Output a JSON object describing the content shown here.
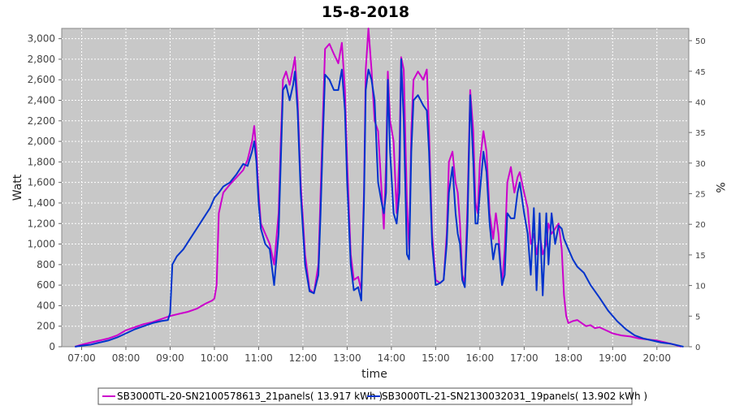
{
  "chart_data": {
    "type": "line",
    "title": "15-8-2018",
    "xlabel": "time",
    "ylabel": "Watt",
    "y2label": "%",
    "xlim": [
      6.55,
      20.72
    ],
    "ylim": [
      0,
      3100
    ],
    "y2lim": [
      0,
      52
    ],
    "x_ticks": [
      "07:00",
      "08:00",
      "09:00",
      "10:00",
      "11:00",
      "12:00",
      "13:00",
      "14:00",
      "15:00",
      "16:00",
      "17:00",
      "18:00",
      "19:00",
      "20:00"
    ],
    "y_ticks": [
      "0",
      "200",
      "400",
      "600",
      "800",
      "1,000",
      "1,200",
      "1,400",
      "1,600",
      "1,800",
      "2,000",
      "2,200",
      "2,400",
      "2,600",
      "2,800",
      "3,000"
    ],
    "y2_ticks": [
      "0",
      "5",
      "10",
      "15",
      "20",
      "25",
      "30",
      "35",
      "40",
      "45",
      "50"
    ],
    "grid": true,
    "legend_position": "bottom",
    "series": [
      {
        "name": "SB3000TL-20-SN2100578613_21panels( 13.917 kWh )",
        "color": "#cc00cc",
        "points": [
          [
            6.85,
            0
          ],
          [
            7.0,
            20
          ],
          [
            7.2,
            40
          ],
          [
            7.4,
            60
          ],
          [
            7.6,
            80
          ],
          [
            7.8,
            110
          ],
          [
            8.0,
            160
          ],
          [
            8.2,
            190
          ],
          [
            8.4,
            220
          ],
          [
            8.6,
            240
          ],
          [
            8.8,
            270
          ],
          [
            9.0,
            300
          ],
          [
            9.2,
            320
          ],
          [
            9.4,
            340
          ],
          [
            9.6,
            370
          ],
          [
            9.8,
            420
          ],
          [
            9.95,
            450
          ],
          [
            10.0,
            470
          ],
          [
            10.05,
            600
          ],
          [
            10.1,
            1300
          ],
          [
            10.2,
            1500
          ],
          [
            10.35,
            1580
          ],
          [
            10.5,
            1650
          ],
          [
            10.65,
            1720
          ],
          [
            10.75,
            1820
          ],
          [
            10.85,
            2000
          ],
          [
            10.9,
            2150
          ],
          [
            10.95,
            1900
          ],
          [
            11.0,
            1500
          ],
          [
            11.05,
            1200
          ],
          [
            11.15,
            1100
          ],
          [
            11.25,
            1000
          ],
          [
            11.35,
            800
          ],
          [
            11.45,
            1300
          ],
          [
            11.5,
            2000
          ],
          [
            11.55,
            2600
          ],
          [
            11.62,
            2680
          ],
          [
            11.7,
            2550
          ],
          [
            11.78,
            2720
          ],
          [
            11.82,
            2820
          ],
          [
            11.88,
            2400
          ],
          [
            11.95,
            1600
          ],
          [
            12.05,
            900
          ],
          [
            12.15,
            560
          ],
          [
            12.25,
            520
          ],
          [
            12.35,
            800
          ],
          [
            12.4,
            1500
          ],
          [
            12.45,
            2200
          ],
          [
            12.5,
            2900
          ],
          [
            12.6,
            2950
          ],
          [
            12.7,
            2850
          ],
          [
            12.8,
            2760
          ],
          [
            12.88,
            2960
          ],
          [
            12.95,
            2500
          ],
          [
            13.0,
            1800
          ],
          [
            13.08,
            900
          ],
          [
            13.15,
            650
          ],
          [
            13.25,
            680
          ],
          [
            13.32,
            550
          ],
          [
            13.38,
            1500
          ],
          [
            13.42,
            2700
          ],
          [
            13.48,
            3100
          ],
          [
            13.55,
            2700
          ],
          [
            13.62,
            2200
          ],
          [
            13.7,
            2100
          ],
          [
            13.78,
            1500
          ],
          [
            13.83,
            1150
          ],
          [
            13.88,
            1800
          ],
          [
            13.92,
            2680
          ],
          [
            13.97,
            2200
          ],
          [
            14.05,
            2000
          ],
          [
            14.12,
            1300
          ],
          [
            14.18,
            1850
          ],
          [
            14.22,
            2820
          ],
          [
            14.28,
            2700
          ],
          [
            14.35,
            1400
          ],
          [
            14.4,
            950
          ],
          [
            14.45,
            2100
          ],
          [
            14.5,
            2600
          ],
          [
            14.6,
            2680
          ],
          [
            14.72,
            2600
          ],
          [
            14.8,
            2700
          ],
          [
            14.85,
            2100
          ],
          [
            14.92,
            1100
          ],
          [
            15.0,
            650
          ],
          [
            15.1,
            620
          ],
          [
            15.18,
            650
          ],
          [
            15.25,
            1100
          ],
          [
            15.3,
            1800
          ],
          [
            15.38,
            1900
          ],
          [
            15.45,
            1600
          ],
          [
            15.5,
            1500
          ],
          [
            15.55,
            1200
          ],
          [
            15.6,
            700
          ],
          [
            15.66,
            620
          ],
          [
            15.72,
            1400
          ],
          [
            15.78,
            2500
          ],
          [
            15.85,
            2100
          ],
          [
            15.9,
            1400
          ],
          [
            15.95,
            1300
          ],
          [
            16.0,
            1800
          ],
          [
            16.08,
            2100
          ],
          [
            16.15,
            1900
          ],
          [
            16.22,
            1300
          ],
          [
            16.3,
            1050
          ],
          [
            16.36,
            1300
          ],
          [
            16.42,
            1100
          ],
          [
            16.5,
            600
          ],
          [
            16.56,
            950
          ],
          [
            16.62,
            1600
          ],
          [
            16.7,
            1750
          ],
          [
            16.78,
            1500
          ],
          [
            16.85,
            1650
          ],
          [
            16.9,
            1700
          ],
          [
            17.0,
            1500
          ],
          [
            17.08,
            1350
          ],
          [
            17.15,
            1000
          ],
          [
            17.22,
            1100
          ],
          [
            17.28,
            900
          ],
          [
            17.35,
            1100
          ],
          [
            17.42,
            900
          ],
          [
            17.5,
            1000
          ],
          [
            17.55,
            1200
          ],
          [
            17.62,
            1100
          ],
          [
            17.7,
            1150
          ],
          [
            17.78,
            1200
          ],
          [
            17.85,
            950
          ],
          [
            17.9,
            500
          ],
          [
            17.95,
            300
          ],
          [
            18.0,
            230
          ],
          [
            18.1,
            250
          ],
          [
            18.2,
            260
          ],
          [
            18.3,
            230
          ],
          [
            18.4,
            200
          ],
          [
            18.5,
            210
          ],
          [
            18.6,
            180
          ],
          [
            18.7,
            190
          ],
          [
            18.8,
            170
          ],
          [
            18.9,
            150
          ],
          [
            19.0,
            130
          ],
          [
            19.2,
            110
          ],
          [
            19.4,
            100
          ],
          [
            19.6,
            80
          ],
          [
            19.8,
            70
          ],
          [
            20.0,
            60
          ],
          [
            20.2,
            40
          ],
          [
            20.4,
            20
          ],
          [
            20.55,
            0
          ]
        ]
      },
      {
        "name": "SB3000TL-21-SN2130032031_19panels( 13.902 kWh )",
        "color": "#0033cc",
        "points": [
          [
            6.85,
            0
          ],
          [
            7.0,
            10
          ],
          [
            7.2,
            20
          ],
          [
            7.4,
            40
          ],
          [
            7.6,
            60
          ],
          [
            7.8,
            90
          ],
          [
            8.0,
            130
          ],
          [
            8.2,
            170
          ],
          [
            8.4,
            200
          ],
          [
            8.6,
            230
          ],
          [
            8.8,
            250
          ],
          [
            8.95,
            260
          ],
          [
            9.0,
            330
          ],
          [
            9.05,
            800
          ],
          [
            9.15,
            880
          ],
          [
            9.3,
            950
          ],
          [
            9.45,
            1050
          ],
          [
            9.6,
            1150
          ],
          [
            9.75,
            1250
          ],
          [
            9.9,
            1350
          ],
          [
            10.0,
            1450
          ],
          [
            10.1,
            1500
          ],
          [
            10.2,
            1560
          ],
          [
            10.35,
            1600
          ],
          [
            10.5,
            1680
          ],
          [
            10.65,
            1780
          ],
          [
            10.75,
            1760
          ],
          [
            10.85,
            1900
          ],
          [
            10.9,
            2000
          ],
          [
            10.95,
            1800
          ],
          [
            11.0,
            1400
          ],
          [
            11.05,
            1150
          ],
          [
            11.15,
            1000
          ],
          [
            11.25,
            950
          ],
          [
            11.35,
            600
          ],
          [
            11.45,
            1100
          ],
          [
            11.5,
            1800
          ],
          [
            11.55,
            2500
          ],
          [
            11.62,
            2550
          ],
          [
            11.7,
            2400
          ],
          [
            11.78,
            2550
          ],
          [
            11.82,
            2680
          ],
          [
            11.88,
            2300
          ],
          [
            11.95,
            1500
          ],
          [
            12.05,
            800
          ],
          [
            12.15,
            540
          ],
          [
            12.25,
            520
          ],
          [
            12.35,
            700
          ],
          [
            12.4,
            1300
          ],
          [
            12.45,
            2000
          ],
          [
            12.5,
            2650
          ],
          [
            12.6,
            2600
          ],
          [
            12.7,
            2500
          ],
          [
            12.8,
            2500
          ],
          [
            12.88,
            2700
          ],
          [
            12.95,
            2300
          ],
          [
            13.0,
            1600
          ],
          [
            13.08,
            800
          ],
          [
            13.15,
            550
          ],
          [
            13.25,
            580
          ],
          [
            13.32,
            450
          ],
          [
            13.38,
            1400
          ],
          [
            13.42,
            2500
          ],
          [
            13.48,
            2700
          ],
          [
            13.55,
            2600
          ],
          [
            13.62,
            2400
          ],
          [
            13.7,
            1600
          ],
          [
            13.78,
            1400
          ],
          [
            13.83,
            1300
          ],
          [
            13.88,
            1500
          ],
          [
            13.92,
            2600
          ],
          [
            13.97,
            1900
          ],
          [
            14.05,
            1300
          ],
          [
            14.12,
            1200
          ],
          [
            14.18,
            1500
          ],
          [
            14.22,
            2800
          ],
          [
            14.28,
            2200
          ],
          [
            14.35,
            900
          ],
          [
            14.4,
            850
          ],
          [
            14.45,
            1900
          ],
          [
            14.5,
            2400
          ],
          [
            14.6,
            2450
          ],
          [
            14.72,
            2350
          ],
          [
            14.8,
            2300
          ],
          [
            14.85,
            1900
          ],
          [
            14.92,
            1000
          ],
          [
            15.0,
            600
          ],
          [
            15.1,
            620
          ],
          [
            15.18,
            650
          ],
          [
            15.25,
            1000
          ],
          [
            15.3,
            1500
          ],
          [
            15.38,
            1750
          ],
          [
            15.45,
            1300
          ],
          [
            15.5,
            1100
          ],
          [
            15.55,
            1000
          ],
          [
            15.6,
            650
          ],
          [
            15.66,
            580
          ],
          [
            15.72,
            1200
          ],
          [
            15.78,
            2450
          ],
          [
            15.85,
            1800
          ],
          [
            15.9,
            1200
          ],
          [
            15.95,
            1200
          ],
          [
            16.0,
            1500
          ],
          [
            16.08,
            1900
          ],
          [
            16.15,
            1700
          ],
          [
            16.22,
            1200
          ],
          [
            16.3,
            850
          ],
          [
            16.36,
            1000
          ],
          [
            16.42,
            1000
          ],
          [
            16.5,
            600
          ],
          [
            16.56,
            700
          ],
          [
            16.62,
            1300
          ],
          [
            16.7,
            1250
          ],
          [
            16.78,
            1250
          ],
          [
            16.85,
            1500
          ],
          [
            16.9,
            1600
          ],
          [
            17.0,
            1300
          ],
          [
            17.08,
            1100
          ],
          [
            17.15,
            700
          ],
          [
            17.22,
            1350
          ],
          [
            17.28,
            550
          ],
          [
            17.35,
            1300
          ],
          [
            17.42,
            500
          ],
          [
            17.5,
            1300
          ],
          [
            17.55,
            800
          ],
          [
            17.62,
            1300
          ],
          [
            17.7,
            1000
          ],
          [
            17.78,
            1180
          ],
          [
            17.85,
            1150
          ],
          [
            17.9,
            1050
          ],
          [
            18.0,
            950
          ],
          [
            18.1,
            850
          ],
          [
            18.2,
            780
          ],
          [
            18.35,
            720
          ],
          [
            18.5,
            600
          ],
          [
            18.7,
            480
          ],
          [
            18.9,
            350
          ],
          [
            19.1,
            250
          ],
          [
            19.3,
            170
          ],
          [
            19.5,
            110
          ],
          [
            19.7,
            80
          ],
          [
            19.9,
            60
          ],
          [
            20.1,
            40
          ],
          [
            20.3,
            30
          ],
          [
            20.5,
            10
          ],
          [
            20.6,
            0
          ]
        ]
      }
    ]
  }
}
